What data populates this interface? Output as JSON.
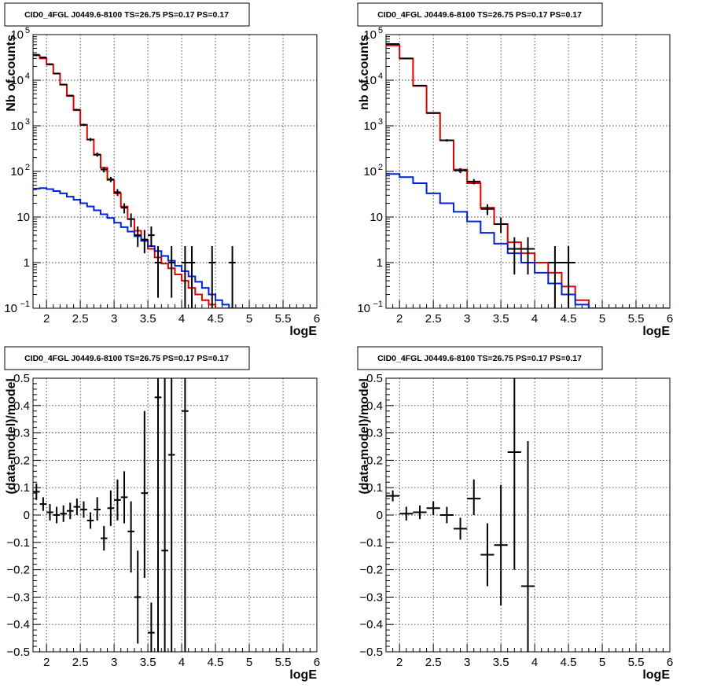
{
  "colors": {
    "data": "#000000",
    "total_model": "#e00000",
    "source_model": "#0020dd",
    "grid": "#000000",
    "frame": "#000000"
  },
  "chart_data": [
    {
      "type": "line",
      "title": "CID0_4FGL J0449.6-8100 TS=26.75 PS=0.17 PS=0.17",
      "xlabel": "logE",
      "ylabel": "Nb of counts",
      "xlim": [
        1.8,
        6.0
      ],
      "ylim": [
        0.1,
        100000
      ],
      "yscale": "log",
      "grid": true,
      "x_ticks": [
        "2",
        "2.5",
        "3",
        "3.5",
        "4",
        "4.5",
        "5",
        "5.5",
        "6"
      ],
      "y_ticks": [
        {
          "value": 0.1,
          "label": "10",
          "exp": "−1"
        },
        {
          "value": 1,
          "label": "1",
          "exp": ""
        },
        {
          "value": 10,
          "label": "10",
          "exp": ""
        },
        {
          "value": 100,
          "label": "10",
          "exp": "2"
        },
        {
          "value": 1000,
          "label": "10",
          "exp": "3"
        },
        {
          "value": 10000,
          "label": "10",
          "exp": "4"
        },
        {
          "value": 100000,
          "label": "10",
          "exp": "5"
        }
      ],
      "bin_edges": [
        1.8,
        1.9,
        2.0,
        2.1,
        2.2,
        2.3,
        2.4,
        2.5,
        2.6,
        2.7,
        2.8,
        2.9,
        3.0,
        3.1,
        3.2,
        3.3,
        3.4,
        3.5,
        3.6,
        3.7,
        3.8,
        3.9,
        4.0,
        4.1,
        4.2,
        4.3,
        4.4,
        4.5,
        4.6,
        4.7,
        4.8,
        4.9,
        5.0,
        5.1,
        5.2,
        5.3,
        5.4,
        5.5,
        5.6,
        5.7,
        5.8,
        5.9,
        6.0
      ],
      "series": [
        {
          "role": "total_model",
          "values": [
            35000,
            30000,
            22000,
            14000,
            8000,
            4500,
            2200,
            1050,
            500,
            230,
            120,
            65,
            33,
            17,
            9,
            5,
            3.2,
            2.0,
            1.3,
            0.95,
            0.75,
            0.55,
            0.4,
            0.28,
            0.2,
            0.15,
            0.12,
            0.1,
            0.1,
            0.1,
            0.1,
            0.1,
            0.1,
            0.1,
            0.1,
            0.1,
            0.1,
            0.1,
            0.1,
            0.1,
            0.1,
            0.1
          ]
        },
        {
          "role": "source_model",
          "values": [
            42,
            43,
            41,
            37,
            33,
            28,
            24,
            20,
            17,
            14,
            11.5,
            9.5,
            7.5,
            6,
            4.8,
            3.8,
            3.0,
            2.3,
            1.8,
            1.4,
            1.1,
            0.85,
            0.65,
            0.5,
            0.38,
            0.28,
            0.2,
            0.15,
            0.12,
            0.1,
            0.1,
            0.1,
            0.1,
            0.1,
            0.1,
            0.1,
            0.1,
            0.1,
            0.1,
            0.1,
            0.1,
            0.1
          ]
        },
        {
          "role": "data",
          "points": [
            {
              "x": 1.85,
              "y": 36000,
              "lo": 35000,
              "hi": 37000,
              "xw": 0.05
            },
            {
              "x": 1.95,
              "y": 31500,
              "lo": 30500,
              "hi": 32500,
              "xw": 0.05
            },
            {
              "x": 2.05,
              "y": 22500,
              "lo": 21500,
              "hi": 23500,
              "xw": 0.05
            },
            {
              "x": 2.15,
              "y": 14000,
              "lo": 13500,
              "hi": 14500,
              "xw": 0.05
            },
            {
              "x": 2.25,
              "y": 8000,
              "lo": 7700,
              "hi": 8300,
              "xw": 0.05
            },
            {
              "x": 2.35,
              "y": 4600,
              "lo": 4400,
              "hi": 4800,
              "xw": 0.05
            },
            {
              "x": 2.45,
              "y": 2250,
              "lo": 2150,
              "hi": 2350,
              "xw": 0.05
            },
            {
              "x": 2.55,
              "y": 1050,
              "lo": 990,
              "hi": 1110,
              "xw": 0.05
            },
            {
              "x": 2.65,
              "y": 500,
              "lo": 460,
              "hi": 540,
              "xw": 0.05
            },
            {
              "x": 2.75,
              "y": 235,
              "lo": 210,
              "hi": 260,
              "xw": 0.05
            },
            {
              "x": 2.85,
              "y": 110,
              "lo": 95,
              "hi": 125,
              "xw": 0.05
            },
            {
              "x": 2.95,
              "y": 67,
              "lo": 58,
              "hi": 76,
              "xw": 0.05
            },
            {
              "x": 3.05,
              "y": 35,
              "lo": 29,
              "hi": 41,
              "xw": 0.05
            },
            {
              "x": 3.15,
              "y": 16,
              "lo": 12,
              "hi": 20,
              "xw": 0.05
            },
            {
              "x": 3.25,
              "y": 9,
              "lo": 6,
              "hi": 12,
              "xw": 0.05
            },
            {
              "x": 3.35,
              "y": 4,
              "lo": 2.2,
              "hi": 6.2,
              "xw": 0.05
            },
            {
              "x": 3.45,
              "y": 3.2,
              "lo": 1.6,
              "hi": 5.2,
              "xw": 0.05
            },
            {
              "x": 3.55,
              "y": 4,
              "lo": 2.2,
              "hi": 6.2,
              "xw": 0.05
            },
            {
              "x": 3.65,
              "y": 1,
              "lo": 0.17,
              "hi": 2.3,
              "xw": 0.05
            },
            {
              "x": 3.85,
              "y": 1,
              "lo": 0.17,
              "hi": 2.3,
              "xw": 0.05
            },
            {
              "x": 4.05,
              "y": 1,
              "lo": 0.1,
              "hi": 2.3,
              "xw": 0.05
            },
            {
              "x": 4.15,
              "y": 1,
              "lo": 0.1,
              "hi": 2.3,
              "xw": 0.05
            },
            {
              "x": 4.45,
              "y": 1,
              "lo": 0.1,
              "hi": 2.3,
              "xw": 0.05
            },
            {
              "x": 4.75,
              "y": 1,
              "lo": 0.1,
              "hi": 2.3,
              "xw": 0.05
            }
          ]
        }
      ]
    },
    {
      "type": "line",
      "title": "CID0_4FGL J0449.6-8100 TS=26.75 PS=0.17 PS=0.17",
      "xlabel": "logE",
      "ylabel": "nb of counts",
      "xlim": [
        1.8,
        6.0
      ],
      "ylim": [
        0.1,
        100000
      ],
      "yscale": "log",
      "grid": true,
      "x_ticks": [
        "2",
        "2.5",
        "3",
        "3.5",
        "4",
        "4.5",
        "5",
        "5.5",
        "6"
      ],
      "y_ticks": [
        {
          "value": 0.1,
          "label": "10",
          "exp": "−1"
        },
        {
          "value": 1,
          "label": "1",
          "exp": ""
        },
        {
          "value": 10,
          "label": "10",
          "exp": ""
        },
        {
          "value": 100,
          "label": "10",
          "exp": "2"
        },
        {
          "value": 1000,
          "label": "10",
          "exp": "3"
        },
        {
          "value": 10000,
          "label": "10",
          "exp": "4"
        },
        {
          "value": 100000,
          "label": "10",
          "exp": "5"
        }
      ],
      "bin_edges": [
        1.8,
        2.0,
        2.2,
        2.4,
        2.6,
        2.8,
        3.0,
        3.2,
        3.4,
        3.6,
        3.8,
        4.0,
        4.2,
        4.4,
        4.6,
        4.8,
        5.0,
        5.2,
        5.4,
        5.6,
        5.8,
        6.0
      ],
      "series": [
        {
          "role": "total_model",
          "values": [
            58000,
            30000,
            7500,
            1900,
            480,
            110,
            55,
            16,
            7,
            2.8,
            1.6,
            1.0,
            0.6,
            0.3,
            0.15,
            0.1,
            0.1,
            0.1,
            0.1,
            0.1,
            0.1
          ]
        },
        {
          "role": "source_model",
          "values": [
            88,
            75,
            55,
            33,
            20,
            13,
            8,
            4.5,
            2.6,
            1.6,
            1.0,
            0.6,
            0.35,
            0.2,
            0.12,
            0.1,
            0.1,
            0.1,
            0.1,
            0.1,
            0.1
          ]
        },
        {
          "role": "data",
          "points": [
            {
              "x": 1.9,
              "y": 62000,
              "lo": 60000,
              "hi": 64000,
              "xw": 0.1
            },
            {
              "x": 2.1,
              "y": 30000,
              "lo": 29000,
              "hi": 31000,
              "xw": 0.1
            },
            {
              "x": 2.3,
              "y": 7600,
              "lo": 7400,
              "hi": 7800,
              "xw": 0.1
            },
            {
              "x": 2.5,
              "y": 1920,
              "lo": 1850,
              "hi": 1990,
              "xw": 0.1
            },
            {
              "x": 2.7,
              "y": 480,
              "lo": 450,
              "hi": 510,
              "xw": 0.1
            },
            {
              "x": 2.9,
              "y": 105,
              "lo": 92,
              "hi": 118,
              "xw": 0.1
            },
            {
              "x": 3.1,
              "y": 60,
              "lo": 52,
              "hi": 68,
              "xw": 0.1
            },
            {
              "x": 3.3,
              "y": 15,
              "lo": 11,
              "hi": 19,
              "xw": 0.1
            },
            {
              "x": 3.5,
              "y": 7,
              "lo": 4.5,
              "hi": 9.7,
              "xw": 0.1
            },
            {
              "x": 3.7,
              "y": 2,
              "lo": 0.55,
              "hi": 3.6,
              "xw": 0.1
            },
            {
              "x": 3.9,
              "y": 2,
              "lo": 0.55,
              "hi": 3.6,
              "xw": 0.1
            },
            {
              "x": 4.3,
              "y": 1,
              "lo": 0.1,
              "hi": 2.3,
              "xw": 0.1
            },
            {
              "x": 4.5,
              "y": 1,
              "lo": 0.1,
              "hi": 2.3,
              "xw": 0.1
            }
          ]
        }
      ]
    },
    {
      "type": "scatter",
      "title": "CID0_4FGL J0449.6-8100 TS=26.75 PS=0.17 PS=0.17",
      "xlabel": "logE",
      "ylabel": "(data-model)/model",
      "xlim": [
        1.8,
        6.0
      ],
      "ylim": [
        -0.5,
        0.5
      ],
      "yscale": "linear",
      "grid": true,
      "x_ticks": [
        "2",
        "2.5",
        "3",
        "3.5",
        "4",
        "4.5",
        "5",
        "5.5",
        "6"
      ],
      "y_ticks": [
        "−0.5",
        "−0.4",
        "−0.3",
        "−0.2",
        "−0.1",
        "0",
        "0.1",
        "0.2",
        "0.3",
        "0.4",
        "0.5"
      ],
      "series": [
        {
          "role": "data",
          "points": [
            {
              "x": 1.85,
              "y": 0.085,
              "lo": 0.055,
              "hi": 0.115,
              "xw": 0.05
            },
            {
              "x": 1.95,
              "y": 0.04,
              "lo": 0.015,
              "hi": 0.065,
              "xw": 0.05
            },
            {
              "x": 2.05,
              "y": 0.01,
              "lo": -0.02,
              "hi": 0.04,
              "xw": 0.05
            },
            {
              "x": 2.15,
              "y": 0.0,
              "lo": -0.03,
              "hi": 0.03,
              "xw": 0.05
            },
            {
              "x": 2.25,
              "y": 0.005,
              "lo": -0.025,
              "hi": 0.035,
              "xw": 0.05
            },
            {
              "x": 2.35,
              "y": 0.015,
              "lo": -0.015,
              "hi": 0.045,
              "xw": 0.05
            },
            {
              "x": 2.45,
              "y": 0.03,
              "lo": 0.0,
              "hi": 0.06,
              "xw": 0.05
            },
            {
              "x": 2.55,
              "y": 0.02,
              "lo": -0.01,
              "hi": 0.05,
              "xw": 0.05
            },
            {
              "x": 2.65,
              "y": -0.02,
              "lo": -0.05,
              "hi": 0.01,
              "xw": 0.05
            },
            {
              "x": 2.75,
              "y": 0.02,
              "lo": -0.02,
              "hi": 0.065,
              "xw": 0.05
            },
            {
              "x": 2.85,
              "y": -0.085,
              "lo": -0.13,
              "hi": -0.04,
              "xw": 0.05
            },
            {
              "x": 2.95,
              "y": 0.025,
              "lo": -0.04,
              "hi": 0.09,
              "xw": 0.05
            },
            {
              "x": 3.05,
              "y": 0.055,
              "lo": -0.02,
              "hi": 0.13,
              "xw": 0.05
            },
            {
              "x": 3.15,
              "y": 0.065,
              "lo": -0.03,
              "hi": 0.16,
              "xw": 0.05
            },
            {
              "x": 3.25,
              "y": -0.06,
              "lo": -0.21,
              "hi": 0.05,
              "xw": 0.05
            },
            {
              "x": 3.35,
              "y": -0.3,
              "lo": -0.47,
              "hi": -0.13,
              "xw": 0.05
            },
            {
              "x": 3.45,
              "y": 0.08,
              "lo": -0.23,
              "hi": 0.38,
              "xw": 0.05
            },
            {
              "x": 3.55,
              "y": -0.43,
              "lo": -0.5,
              "hi": -0.32,
              "xw": 0.05
            },
            {
              "x": 3.65,
              "y": 0.43,
              "lo": -0.5,
              "hi": 0.5,
              "xw": 0.05
            },
            {
              "x": 3.75,
              "y": -0.13,
              "lo": -0.5,
              "hi": 0.5,
              "xw": 0.05
            },
            {
              "x": 3.85,
              "y": 0.22,
              "lo": -0.5,
              "hi": 0.5,
              "xw": 0.05
            },
            {
              "x": 4.05,
              "y": 0.38,
              "lo": -0.5,
              "hi": 0.5,
              "xw": 0.05
            }
          ]
        }
      ]
    },
    {
      "type": "scatter",
      "title": "CID0_4FGL J0449.6-8100 TS=26.75 PS=0.17 PS=0.17",
      "xlabel": "logE",
      "ylabel": "(data-model)/model",
      "xlim": [
        1.8,
        6.0
      ],
      "ylim": [
        -0.5,
        0.5
      ],
      "yscale": "linear",
      "grid": true,
      "x_ticks": [
        "2",
        "2.5",
        "3",
        "3.5",
        "4",
        "4.5",
        "5",
        "5.5",
        "6"
      ],
      "y_ticks": [
        "−0.5",
        "−0.4",
        "−0.3",
        "−0.2",
        "−0.1",
        "0",
        "0.1",
        "0.2",
        "0.3",
        "0.4",
        "0.5"
      ],
      "series": [
        {
          "role": "data",
          "points": [
            {
              "x": 1.9,
              "y": 0.07,
              "lo": 0.05,
              "hi": 0.09,
              "xw": 0.1
            },
            {
              "x": 2.1,
              "y": 0.005,
              "lo": -0.02,
              "hi": 0.03,
              "xw": 0.1
            },
            {
              "x": 2.3,
              "y": 0.01,
              "lo": -0.015,
              "hi": 0.035,
              "xw": 0.1
            },
            {
              "x": 2.5,
              "y": 0.025,
              "lo": 0.0,
              "hi": 0.05,
              "xw": 0.1
            },
            {
              "x": 2.7,
              "y": 0.0,
              "lo": -0.03,
              "hi": 0.03,
              "xw": 0.1
            },
            {
              "x": 2.9,
              "y": -0.05,
              "lo": -0.09,
              "hi": -0.01,
              "xw": 0.1
            },
            {
              "x": 3.1,
              "y": 0.06,
              "lo": 0.0,
              "hi": 0.13,
              "xw": 0.1
            },
            {
              "x": 3.3,
              "y": -0.145,
              "lo": -0.26,
              "hi": -0.03,
              "xw": 0.1
            },
            {
              "x": 3.5,
              "y": -0.11,
              "lo": -0.33,
              "hi": 0.11,
              "xw": 0.1
            },
            {
              "x": 3.7,
              "y": 0.23,
              "lo": -0.2,
              "hi": 0.5,
              "xw": 0.1
            },
            {
              "x": 3.9,
              "y": -0.26,
              "lo": -0.5,
              "hi": 0.27,
              "xw": 0.1
            }
          ]
        }
      ]
    }
  ]
}
